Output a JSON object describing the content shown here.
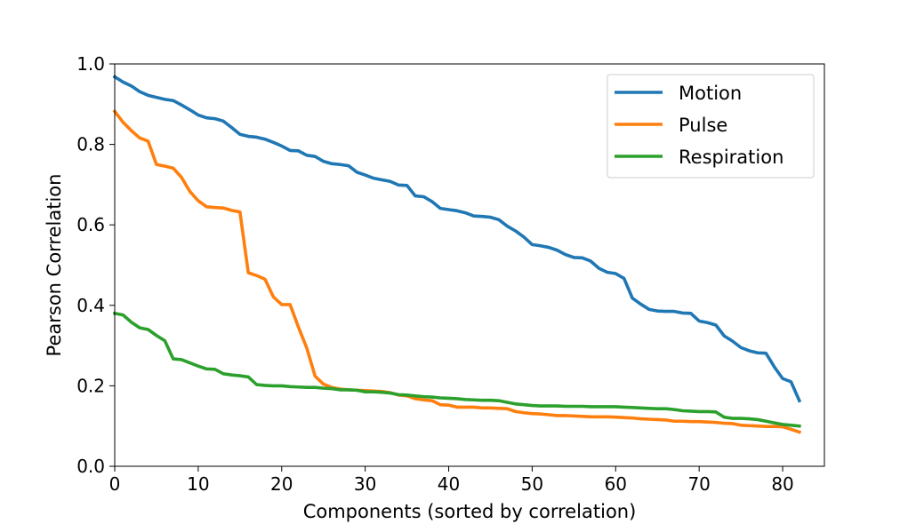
{
  "chart_data": {
    "type": "line",
    "title": "",
    "xlabel": "Components (sorted by correlation)",
    "ylabel": "Pearson Correlation",
    "xlim": [
      0,
      85
    ],
    "ylim": [
      0.0,
      1.0
    ],
    "xticks": [
      0,
      10,
      20,
      30,
      40,
      50,
      60,
      70,
      80
    ],
    "xtick_labels": [
      "0",
      "10",
      "20",
      "30",
      "40",
      "50",
      "60",
      "70",
      "80"
    ],
    "yticks": [
      0.0,
      0.2,
      0.4,
      0.6,
      0.8,
      1.0
    ],
    "ytick_labels": [
      "0.0",
      "0.2",
      "0.4",
      "0.6",
      "0.8",
      "1.0"
    ],
    "grid": false,
    "legend_position": "top-right",
    "series": [
      {
        "name": "Motion",
        "color": "#1f77b4",
        "x": [
          0,
          1,
          2,
          3,
          4,
          5,
          6,
          7,
          8,
          9,
          10,
          11,
          12,
          13,
          14,
          15,
          16,
          17,
          18,
          19,
          20,
          21,
          22,
          23,
          24,
          25,
          26,
          27,
          28,
          29,
          30,
          31,
          32,
          33,
          34,
          35,
          36,
          37,
          38,
          39,
          40,
          41,
          42,
          43,
          44,
          45,
          46,
          47,
          48,
          49,
          50,
          51,
          52,
          53,
          54,
          55,
          56,
          57,
          58,
          59,
          60,
          61,
          62,
          63,
          64,
          65,
          66,
          67,
          68,
          69,
          70,
          71,
          72,
          73,
          74,
          75,
          76,
          77,
          78,
          79,
          80,
          81,
          82
        ],
        "values": [
          0.968,
          0.955,
          0.945,
          0.931,
          0.922,
          0.917,
          0.912,
          0.909,
          0.898,
          0.886,
          0.873,
          0.866,
          0.864,
          0.858,
          0.842,
          0.825,
          0.82,
          0.818,
          0.813,
          0.805,
          0.796,
          0.785,
          0.784,
          0.773,
          0.77,
          0.758,
          0.752,
          0.75,
          0.747,
          0.731,
          0.724,
          0.716,
          0.712,
          0.708,
          0.699,
          0.698,
          0.672,
          0.67,
          0.658,
          0.641,
          0.638,
          0.635,
          0.63,
          0.622,
          0.621,
          0.619,
          0.613,
          0.597,
          0.585,
          0.57,
          0.551,
          0.548,
          0.544,
          0.537,
          0.526,
          0.519,
          0.518,
          0.51,
          0.492,
          0.482,
          0.479,
          0.467,
          0.418,
          0.403,
          0.39,
          0.386,
          0.385,
          0.385,
          0.381,
          0.38,
          0.361,
          0.357,
          0.351,
          0.324,
          0.311,
          0.295,
          0.287,
          0.282,
          0.281,
          0.247,
          0.218,
          0.21,
          0.163
        ]
      },
      {
        "name": "Pulse",
        "color": "#ff7f0e",
        "x": [
          0,
          1,
          2,
          3,
          4,
          5,
          6,
          7,
          8,
          9,
          10,
          11,
          12,
          13,
          14,
          15,
          16,
          17,
          18,
          19,
          20,
          21,
          22,
          23,
          24,
          25,
          26,
          27,
          28,
          29,
          30,
          31,
          32,
          33,
          34,
          35,
          36,
          37,
          38,
          39,
          40,
          41,
          42,
          43,
          44,
          45,
          46,
          47,
          48,
          49,
          50,
          51,
          52,
          53,
          54,
          55,
          56,
          57,
          58,
          59,
          60,
          61,
          62,
          63,
          64,
          65,
          66,
          67,
          68,
          69,
          70,
          71,
          72,
          73,
          74,
          75,
          76,
          77,
          78,
          79,
          80,
          81,
          82
        ],
        "values": [
          0.882,
          0.855,
          0.834,
          0.816,
          0.808,
          0.75,
          0.746,
          0.741,
          0.718,
          0.683,
          0.66,
          0.645,
          0.643,
          0.642,
          0.636,
          0.632,
          0.481,
          0.474,
          0.465,
          0.421,
          0.402,
          0.402,
          0.346,
          0.294,
          0.224,
          0.204,
          0.196,
          0.192,
          0.19,
          0.189,
          0.188,
          0.187,
          0.186,
          0.183,
          0.177,
          0.175,
          0.168,
          0.165,
          0.163,
          0.153,
          0.152,
          0.147,
          0.147,
          0.147,
          0.145,
          0.145,
          0.144,
          0.143,
          0.136,
          0.133,
          0.131,
          0.13,
          0.128,
          0.126,
          0.126,
          0.125,
          0.124,
          0.123,
          0.123,
          0.123,
          0.122,
          0.121,
          0.12,
          0.118,
          0.117,
          0.116,
          0.115,
          0.112,
          0.112,
          0.111,
          0.111,
          0.11,
          0.109,
          0.107,
          0.106,
          0.102,
          0.101,
          0.1,
          0.099,
          0.099,
          0.098,
          0.092,
          0.085
        ]
      },
      {
        "name": "Respiration",
        "color": "#2ca02c",
        "x": [
          0,
          1,
          2,
          3,
          4,
          5,
          6,
          7,
          8,
          9,
          10,
          11,
          12,
          13,
          14,
          15,
          16,
          17,
          18,
          19,
          20,
          21,
          22,
          23,
          24,
          25,
          26,
          27,
          28,
          29,
          30,
          31,
          32,
          33,
          34,
          35,
          36,
          37,
          38,
          39,
          40,
          41,
          42,
          43,
          44,
          45,
          46,
          47,
          48,
          49,
          50,
          51,
          52,
          53,
          54,
          55,
          56,
          57,
          58,
          59,
          60,
          61,
          62,
          63,
          64,
          65,
          66,
          67,
          68,
          69,
          70,
          71,
          72,
          73,
          74,
          75,
          76,
          77,
          78,
          79,
          80,
          81,
          82
        ],
        "values": [
          0.38,
          0.376,
          0.358,
          0.344,
          0.34,
          0.325,
          0.312,
          0.267,
          0.265,
          0.257,
          0.249,
          0.242,
          0.241,
          0.23,
          0.227,
          0.225,
          0.222,
          0.203,
          0.201,
          0.2,
          0.2,
          0.198,
          0.197,
          0.196,
          0.196,
          0.194,
          0.193,
          0.19,
          0.19,
          0.189,
          0.185,
          0.185,
          0.184,
          0.182,
          0.178,
          0.177,
          0.175,
          0.173,
          0.172,
          0.17,
          0.169,
          0.168,
          0.166,
          0.165,
          0.164,
          0.164,
          0.163,
          0.159,
          0.155,
          0.153,
          0.151,
          0.15,
          0.15,
          0.15,
          0.149,
          0.149,
          0.149,
          0.148,
          0.148,
          0.148,
          0.148,
          0.147,
          0.146,
          0.145,
          0.144,
          0.143,
          0.143,
          0.141,
          0.138,
          0.137,
          0.136,
          0.136,
          0.135,
          0.122,
          0.119,
          0.119,
          0.118,
          0.116,
          0.112,
          0.108,
          0.104,
          0.102,
          0.1
        ]
      }
    ]
  }
}
